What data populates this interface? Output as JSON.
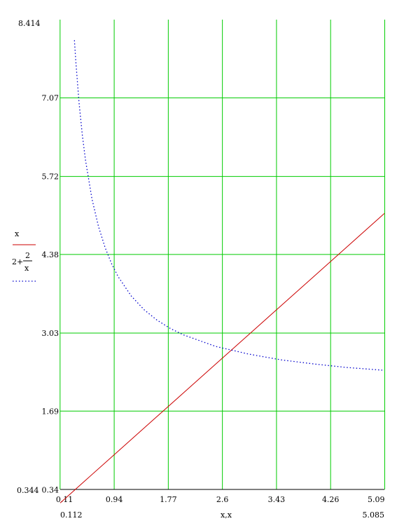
{
  "chart_data": {
    "type": "line",
    "x_label": "x,x",
    "xlim": [
      0.112,
      5.085
    ],
    "ylim": [
      0.344,
      8.414
    ],
    "x_range_labels": {
      "min": "0.112",
      "max": "5.085"
    },
    "y_range_labels": {
      "min": "0.344",
      "max": "8.414"
    },
    "x_ticks": [
      0.11,
      0.94,
      1.77,
      2.6,
      3.43,
      4.26,
      5.09
    ],
    "x_tick_labels": [
      "0.11",
      "0.94",
      "1.77",
      "2.6",
      "3.43",
      "4.26",
      "5.09"
    ],
    "y_ticks": [
      0.34,
      1.69,
      3.03,
      4.38,
      5.72,
      7.07
    ],
    "y_tick_labels": [
      "0.34",
      "1.69",
      "3.03",
      "4.38",
      "5.72",
      "7.07"
    ],
    "grid": true,
    "legend_position": "left",
    "series": [
      {
        "legend_expr": "x",
        "style": "solid",
        "color": "#cc0000",
        "x": [
          0.112,
          0.5,
          1.0,
          1.5,
          2.0,
          2.5,
          3.0,
          3.5,
          4.0,
          4.5,
          5.085
        ],
        "y": [
          0.112,
          0.5,
          1.0,
          1.5,
          2.0,
          2.5,
          3.0,
          3.5,
          4.0,
          4.5,
          5.085
        ]
      },
      {
        "legend_expr": {
          "lead": "2+",
          "numerator": "2",
          "denominator": "x"
        },
        "style": "dotted",
        "color": "#0000cc",
        "x": [
          0.33,
          0.35,
          0.4,
          0.45,
          0.5,
          0.6,
          0.7,
          0.8,
          0.9,
          1.0,
          1.2,
          1.4,
          1.6,
          1.8,
          2.0,
          2.5,
          3.0,
          3.5,
          4.0,
          4.5,
          5.085
        ],
        "y": [
          8.06,
          7.71,
          7.0,
          6.44,
          6.0,
          5.33,
          4.86,
          4.5,
          4.22,
          4.0,
          3.67,
          3.43,
          3.25,
          3.11,
          3.0,
          2.8,
          2.67,
          2.57,
          2.5,
          2.44,
          2.39
        ]
      }
    ],
    "colors": {
      "grid": "#00cc00",
      "axis": "#000000"
    }
  }
}
